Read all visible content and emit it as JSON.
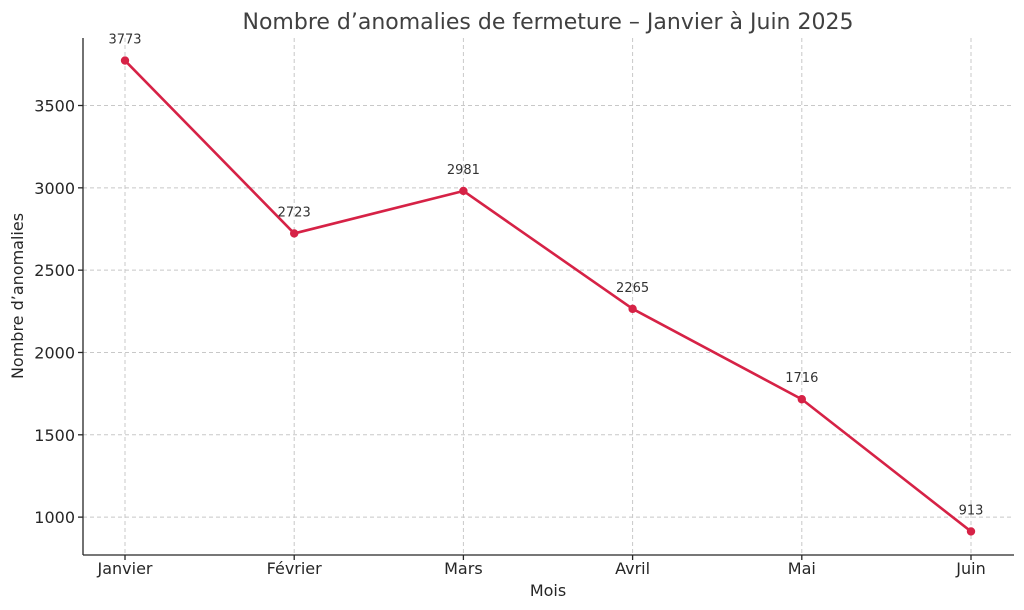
{
  "chart_data": {
    "type": "line",
    "title": "Nombre d’anomalies de fermeture – Janvier à Juin 2025",
    "xlabel": "Mois",
    "ylabel": "Nombre d’anomalies",
    "categories": [
      "Janvier",
      "Février",
      "Mars",
      "Avril",
      "Mai",
      "Juin"
    ],
    "series": [
      {
        "values": [
          3773,
          2723,
          2981,
          2265,
          1716,
          913
        ],
        "color": "#d62246"
      }
    ],
    "data_labels": [
      "3773",
      "2723",
      "2981",
      "2265",
      "1716",
      "913"
    ],
    "ylim": [
      770,
      3910
    ],
    "yticks": [
      1000,
      1500,
      2000,
      2500,
      3000,
      3500
    ],
    "ytick_labels": [
      "1000",
      "1500",
      "2000",
      "2500",
      "3000",
      "3500"
    ],
    "grid": true,
    "marker": "circle"
  }
}
